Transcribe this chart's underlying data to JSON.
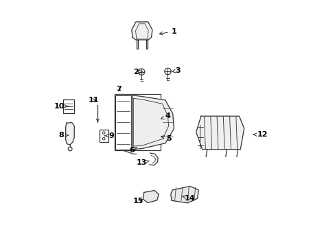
{
  "background_color": "#ffffff",
  "line_color": "#333333",
  "label_color": "#000000",
  "figsize": [
    4.89,
    3.6
  ],
  "dpi": 100,
  "labels": [
    {
      "text": "1",
      "lpos": [
        0.525,
        0.875
      ],
      "tpos": [
        0.455,
        0.862
      ]
    },
    {
      "text": "2",
      "lpos": [
        0.37,
        0.71
      ],
      "tpos": [
        0.4,
        0.71
      ]
    },
    {
      "text": "3",
      "lpos": [
        0.54,
        0.715
      ],
      "tpos": [
        0.515,
        0.71
      ]
    },
    {
      "text": "4",
      "lpos": [
        0.5,
        0.53
      ],
      "tpos": [
        0.462,
        0.515
      ]
    },
    {
      "text": "5",
      "lpos": [
        0.505,
        0.44
      ],
      "tpos": [
        0.462,
        0.45
      ]
    },
    {
      "text": "6",
      "lpos": [
        0.355,
        0.39
      ],
      "tpos": [
        0.375,
        0.405
      ]
    },
    {
      "text": "7",
      "lpos": [
        0.3,
        0.64
      ],
      "tpos": [
        0.315,
        0.625
      ]
    },
    {
      "text": "8",
      "lpos": [
        0.068,
        0.452
      ],
      "tpos": [
        0.098,
        0.452
      ]
    },
    {
      "text": "9",
      "lpos": [
        0.27,
        0.45
      ],
      "tpos": [
        0.243,
        0.45
      ]
    },
    {
      "text": "10",
      "lpos": [
        0.058,
        0.57
      ],
      "tpos": [
        0.095,
        0.57
      ]
    },
    {
      "text": "11",
      "lpos": [
        0.198,
        0.595
      ],
      "tpos": [
        0.218,
        0.595
      ]
    },
    {
      "text": "12",
      "lpos": [
        0.885,
        0.455
      ],
      "tpos": [
        0.845,
        0.455
      ]
    },
    {
      "text": "13",
      "lpos": [
        0.395,
        0.34
      ],
      "tpos": [
        0.425,
        0.348
      ]
    },
    {
      "text": "14",
      "lpos": [
        0.59,
        0.195
      ],
      "tpos": [
        0.558,
        0.205
      ]
    },
    {
      "text": "15",
      "lpos": [
        0.38,
        0.185
      ],
      "tpos": [
        0.408,
        0.195
      ]
    }
  ]
}
